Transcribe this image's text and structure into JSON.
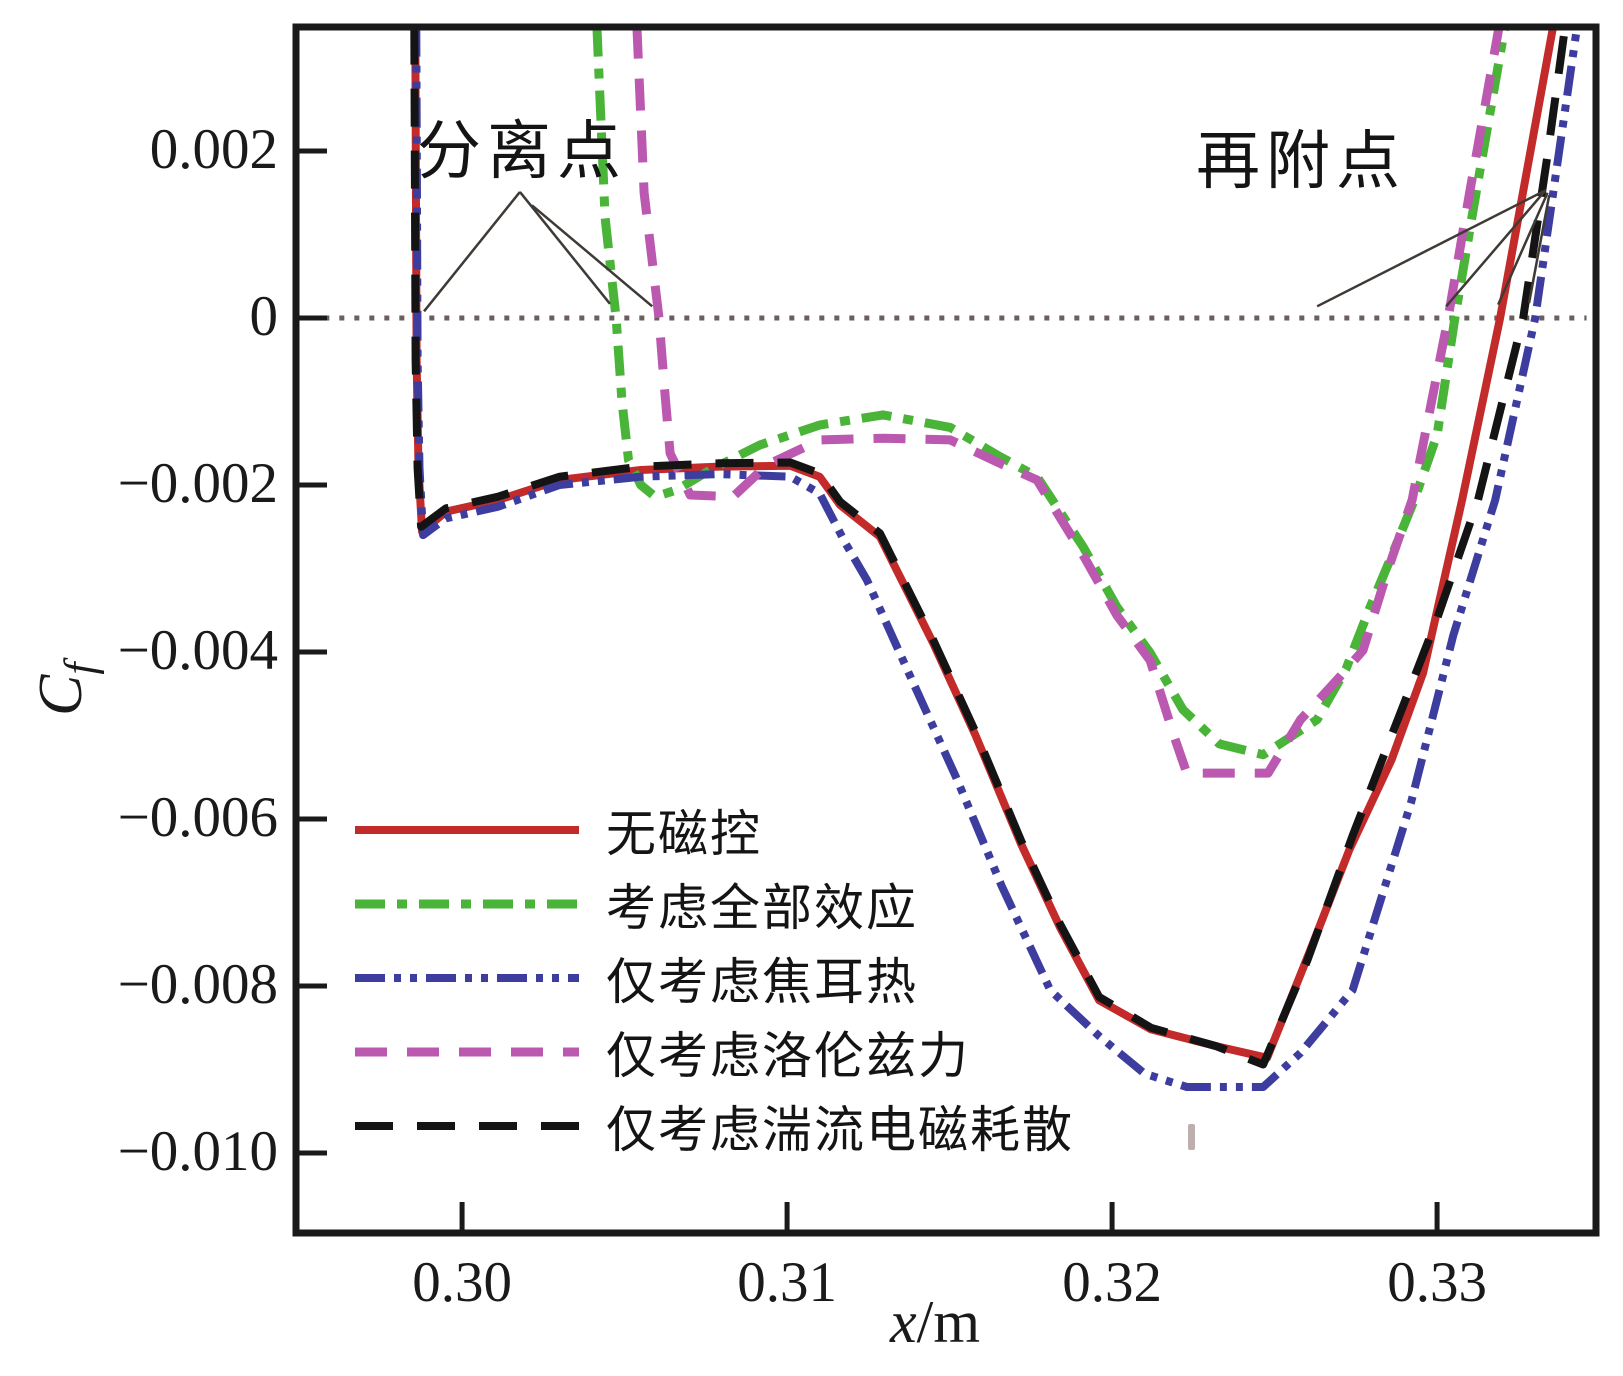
{
  "figure": {
    "background": "#ffffff"
  },
  "axes": {
    "x_label_var": "x",
    "x_label_rest": "/m",
    "y_label_var": "C",
    "y_label_sub": "f",
    "x_ticks": [
      {
        "v": 0.3,
        "label": "0.30"
      },
      {
        "v": 0.31,
        "label": "0.31"
      },
      {
        "v": 0.32,
        "label": "0.32"
      },
      {
        "v": 0.33,
        "label": "0.33"
      }
    ],
    "y_ticks": [
      {
        "v": 0.002,
        "label": "0.002"
      },
      {
        "v": 0.0,
        "label": "0"
      },
      {
        "v": -0.002,
        "label": "−0.002"
      },
      {
        "v": -0.004,
        "label": "−0.004"
      },
      {
        "v": -0.006,
        "label": "−0.006"
      },
      {
        "v": -0.008,
        "label": "−0.008"
      },
      {
        "v": -0.01,
        "label": "−0.010"
      }
    ]
  },
  "chart_data": {
    "type": "line",
    "title": "",
    "xlabel": "x/m",
    "ylabel": "Cf",
    "xlim": [
      0.29489,
      0.33489
    ],
    "ylim": [
      -0.010958,
      0.003485
    ],
    "grid": false,
    "legend_position": "lower-left-inside",
    "zero_line": {
      "y": 0.0,
      "x1": 0.2953,
      "x2": 0.3346,
      "color": "#6b5e5e"
    },
    "annotations": {
      "separation": {
        "label": "分离点"
      },
      "reattachment": {
        "label": "再附点"
      }
    },
    "pointers": [
      {
        "from": [
          0.30178,
          0.00151
        ],
        "to": [
          0.29883,
          8e-05
        ]
      },
      {
        "from": [
          0.30178,
          0.00151
        ],
        "to": [
          0.30455,
          0.00017
        ]
      },
      {
        "from": [
          0.30215,
          0.00135
        ],
        "to": [
          0.30585,
          0.00014
        ]
      },
      {
        "from": [
          0.33334,
          0.00153
        ],
        "to": [
          0.32631,
          0.00014
        ]
      },
      {
        "from": [
          0.33334,
          0.00153
        ],
        "to": [
          0.33028,
          0.00014
        ]
      },
      {
        "from": [
          0.3334,
          0.0015
        ],
        "to": [
          0.33188,
          0.00016
        ]
      },
      {
        "from": [
          0.33345,
          0.00147
        ],
        "to": [
          0.33283,
          0.00018
        ]
      }
    ],
    "series": [
      {
        "name": "无磁控",
        "color": "#c32a2a",
        "style": "solid",
        "width": 8,
        "points": [
          [
            0.29856,
            0.00349
          ],
          [
            0.2986,
            -0.0005
          ],
          [
            0.29866,
            -0.0018
          ],
          [
            0.29877,
            -0.00256
          ],
          [
            0.2995,
            -0.00232
          ],
          [
            0.30111,
            -0.00218
          ],
          [
            0.303,
            -0.00194
          ],
          [
            0.3055,
            -0.00182
          ],
          [
            0.3079,
            -0.00178
          ],
          [
            0.3101,
            -0.00177
          ],
          [
            0.311,
            -0.0019
          ],
          [
            0.31163,
            -0.00224
          ],
          [
            0.31286,
            -0.00262
          ],
          [
            0.31449,
            -0.00389
          ],
          [
            0.3158,
            -0.005
          ],
          [
            0.3172,
            -0.0063
          ],
          [
            0.3184,
            -0.0073
          ],
          [
            0.3196,
            -0.00817
          ],
          [
            0.3212,
            -0.00852
          ],
          [
            0.3232,
            -0.00872
          ],
          [
            0.32477,
            -0.00886
          ],
          [
            0.3261,
            -0.00757
          ],
          [
            0.3273,
            -0.00637
          ],
          [
            0.3286,
            -0.00529
          ],
          [
            0.32957,
            -0.00425
          ],
          [
            0.33077,
            -0.00218
          ],
          [
            0.33194,
            0.0
          ],
          [
            0.33283,
            0.0019
          ],
          [
            0.33357,
            0.00349
          ]
        ]
      },
      {
        "name": "考虑全部效应",
        "color": "#49b437",
        "style": "dash-dot",
        "width": 9,
        "points": [
          [
            0.30415,
            0.00349
          ],
          [
            0.3044,
            0.0012
          ],
          [
            0.30474,
            0.0
          ],
          [
            0.30492,
            -0.001
          ],
          [
            0.30512,
            -0.0017
          ],
          [
            0.3055,
            -0.002
          ],
          [
            0.30594,
            -0.00214
          ],
          [
            0.3066,
            -0.00206
          ],
          [
            0.30763,
            -0.00182
          ],
          [
            0.30917,
            -0.00152
          ],
          [
            0.31102,
            -0.00128
          ],
          [
            0.31295,
            -0.00116
          ],
          [
            0.31502,
            -0.00131
          ],
          [
            0.31655,
            -0.00166
          ],
          [
            0.31769,
            -0.0019
          ],
          [
            0.31911,
            -0.00274
          ],
          [
            0.32015,
            -0.00346
          ],
          [
            0.32117,
            -0.00401
          ],
          [
            0.32218,
            -0.00469
          ],
          [
            0.3233,
            -0.0051
          ],
          [
            0.32465,
            -0.00523
          ],
          [
            0.32631,
            -0.00481
          ],
          [
            0.3272,
            -0.0042
          ],
          [
            0.3279,
            -0.0035
          ],
          [
            0.3286,
            -0.00285
          ],
          [
            0.3293,
            -0.00218
          ],
          [
            0.33,
            -0.0014
          ],
          [
            0.33055,
            0.0
          ],
          [
            0.3312,
            0.0015
          ],
          [
            0.33209,
            0.00349
          ]
        ]
      },
      {
        "name": "仅考虑焦耳热",
        "color": "#3d3da0",
        "style": "dash-dot-dot",
        "width": 8,
        "points": [
          [
            0.29859,
            0.00349
          ],
          [
            0.29863,
            -0.0005
          ],
          [
            0.29869,
            -0.0018
          ],
          [
            0.2988,
            -0.0026
          ],
          [
            0.2995,
            -0.0024
          ],
          [
            0.30111,
            -0.00226
          ],
          [
            0.303,
            -0.002
          ],
          [
            0.3055,
            -0.0019
          ],
          [
            0.3079,
            -0.00187
          ],
          [
            0.3101,
            -0.0019
          ],
          [
            0.311,
            -0.0021
          ],
          [
            0.3118,
            -0.0027
          ],
          [
            0.31246,
            -0.00314
          ],
          [
            0.3138,
            -0.0043
          ],
          [
            0.3152,
            -0.0055
          ],
          [
            0.3166,
            -0.0068
          ],
          [
            0.3181,
            -0.00805
          ],
          [
            0.3196,
            -0.0086
          ],
          [
            0.321,
            -0.00905
          ],
          [
            0.3223,
            -0.00921
          ],
          [
            0.32465,
            -0.00921
          ],
          [
            0.3258,
            -0.0088
          ],
          [
            0.3274,
            -0.00805
          ],
          [
            0.3292,
            -0.0058
          ],
          [
            0.3305,
            -0.0038
          ],
          [
            0.33179,
            -0.00218
          ],
          [
            0.33302,
            0.0
          ],
          [
            0.33372,
            0.0019
          ],
          [
            0.33431,
            0.00349
          ]
        ]
      },
      {
        "name": "仅考虑洛伦兹力",
        "color": "#bb59b0",
        "style": "dashed",
        "width": 9,
        "points": [
          [
            0.30538,
            0.00349
          ],
          [
            0.3056,
            0.0015
          ],
          [
            0.30606,
            0.0
          ],
          [
            0.30622,
            -0.0008
          ],
          [
            0.3064,
            -0.00162
          ],
          [
            0.30702,
            -0.00212
          ],
          [
            0.30834,
            -0.00214
          ],
          [
            0.30938,
            -0.00176
          ],
          [
            0.31102,
            -0.00146
          ],
          [
            0.31295,
            -0.00144
          ],
          [
            0.31502,
            -0.00146
          ],
          [
            0.31655,
            -0.00174
          ],
          [
            0.31769,
            -0.00194
          ],
          [
            0.31911,
            -0.00284
          ],
          [
            0.32015,
            -0.00356
          ],
          [
            0.32117,
            -0.0041
          ],
          [
            0.3219,
            -0.005
          ],
          [
            0.3223,
            -0.00545
          ],
          [
            0.3248,
            -0.00545
          ],
          [
            0.3258,
            -0.00481
          ],
          [
            0.327,
            -0.0043
          ],
          [
            0.32772,
            -0.00398
          ],
          [
            0.3285,
            -0.003
          ],
          [
            0.32923,
            -0.00218
          ],
          [
            0.33034,
            0.0
          ],
          [
            0.331,
            0.0015
          ],
          [
            0.33191,
            0.00349
          ]
        ]
      },
      {
        "name": "仅考虑湍流电磁耗散",
        "color": "#141414",
        "style": "long-dash",
        "width": 8,
        "points": [
          [
            0.29853,
            0.00349
          ],
          [
            0.29857,
            -0.0005
          ],
          [
            0.29863,
            -0.0018
          ],
          [
            0.29874,
            -0.0025
          ],
          [
            0.2995,
            -0.00228
          ],
          [
            0.30111,
            -0.00214
          ],
          [
            0.303,
            -0.0019
          ],
          [
            0.3055,
            -0.00178
          ],
          [
            0.3079,
            -0.00174
          ],
          [
            0.3101,
            -0.00173
          ],
          [
            0.311,
            -0.00186
          ],
          [
            0.31163,
            -0.0022
          ],
          [
            0.31286,
            -0.00258
          ],
          [
            0.31449,
            -0.00385
          ],
          [
            0.3158,
            -0.00496
          ],
          [
            0.3172,
            -0.00626
          ],
          [
            0.3184,
            -0.00726
          ],
          [
            0.3196,
            -0.00813
          ],
          [
            0.3212,
            -0.0085
          ],
          [
            0.3232,
            -0.00872
          ],
          [
            0.32465,
            -0.00894
          ],
          [
            0.326,
            -0.0077
          ],
          [
            0.3274,
            -0.0062
          ],
          [
            0.3288,
            -0.0048
          ],
          [
            0.33,
            -0.0036
          ],
          [
            0.33126,
            -0.00218
          ],
          [
            0.33265,
            0.0
          ],
          [
            0.33338,
            0.0019
          ],
          [
            0.33394,
            0.00349
          ]
        ]
      }
    ]
  }
}
